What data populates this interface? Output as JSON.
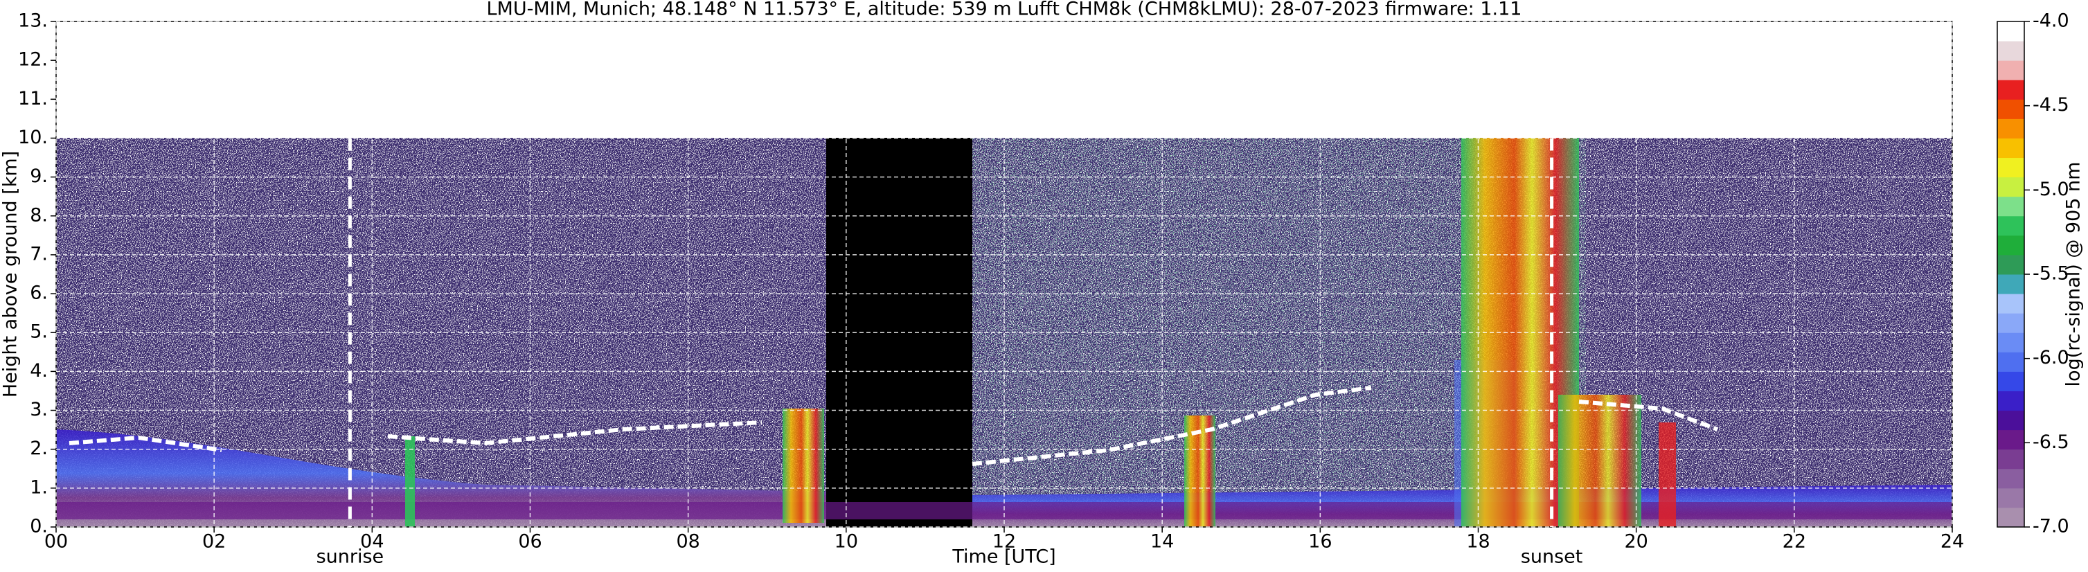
{
  "chart_data": {
    "type": "heatmap",
    "title": "LMU-MIM, Munich; 48.148° N 11.573° E, altitude: 539 m    Lufft CHM8k (CHM8kLMU): 28-07-2023    firmware: 1.11",
    "x_label": "Time [UTC]",
    "y_label": "Height above ground [km]",
    "xlim": [
      0,
      24
    ],
    "xticks": [
      {
        "value": 0,
        "label": "00"
      },
      {
        "value": 2,
        "label": "02"
      },
      {
        "value": 4,
        "label": "04"
      },
      {
        "value": 6,
        "label": "06"
      },
      {
        "value": 8,
        "label": "08"
      },
      10,
      12,
      14,
      16,
      18,
      20,
      22,
      24
    ],
    "ylim": [
      0,
      13
    ],
    "yticks": [
      {
        "value": 0,
        "label": "0."
      },
      {
        "value": 1,
        "label": "1."
      },
      {
        "value": 2,
        "label": "2."
      },
      {
        "value": 3,
        "label": "3."
      },
      {
        "value": 4,
        "label": "4."
      },
      {
        "value": 5,
        "label": "5."
      },
      {
        "value": 6,
        "label": "6."
      },
      {
        "value": 7,
        "label": "7."
      },
      {
        "value": 8,
        "label": "8."
      },
      {
        "value": 9,
        "label": "9."
      },
      {
        "value": 10,
        "label": "10."
      },
      {
        "value": 11,
        "label": "11."
      },
      {
        "value": 12,
        "label": "12."
      },
      {
        "value": 13,
        "label": "13."
      }
    ],
    "grid": true,
    "events": [
      {
        "x": 3.72,
        "label": "sunrise"
      },
      {
        "x": 18.93,
        "label": "sunset"
      }
    ],
    "colorbar": {
      "label": "log(rc-signal) @ 905 nm",
      "lim": [
        -7,
        -4
      ],
      "ticks": [
        {
          "value": -7,
          "label": "-7.0"
        },
        {
          "value": -6.5,
          "label": "-6.5"
        },
        {
          "value": -6,
          "label": "-6.0"
        },
        {
          "value": -5.5,
          "label": "-5.5"
        },
        {
          "value": -5,
          "label": "-5.0"
        },
        {
          "value": -4.5,
          "label": "-4.5"
        },
        {
          "value": -4,
          "label": "-4.0"
        }
      ],
      "colors": [
        "#a98fae",
        "#9a78a8",
        "#8a5ea0",
        "#7a3d92",
        "#6a1a8a",
        "#4b0f9a",
        "#3a1fc8",
        "#3548e8",
        "#4f6ff0",
        "#6a8cf5",
        "#8aa8f8",
        "#a8c4fa",
        "#3fa8b8",
        "#2e9b57",
        "#1fae3a",
        "#2ec25a",
        "#7de08a",
        "#c8f040",
        "#f0f020",
        "#f8c000",
        "#f89000",
        "#f05000",
        "#e82020",
        "#f0b0b0",
        "#e8d8dc",
        "#ffffff"
      ]
    }
  }
}
